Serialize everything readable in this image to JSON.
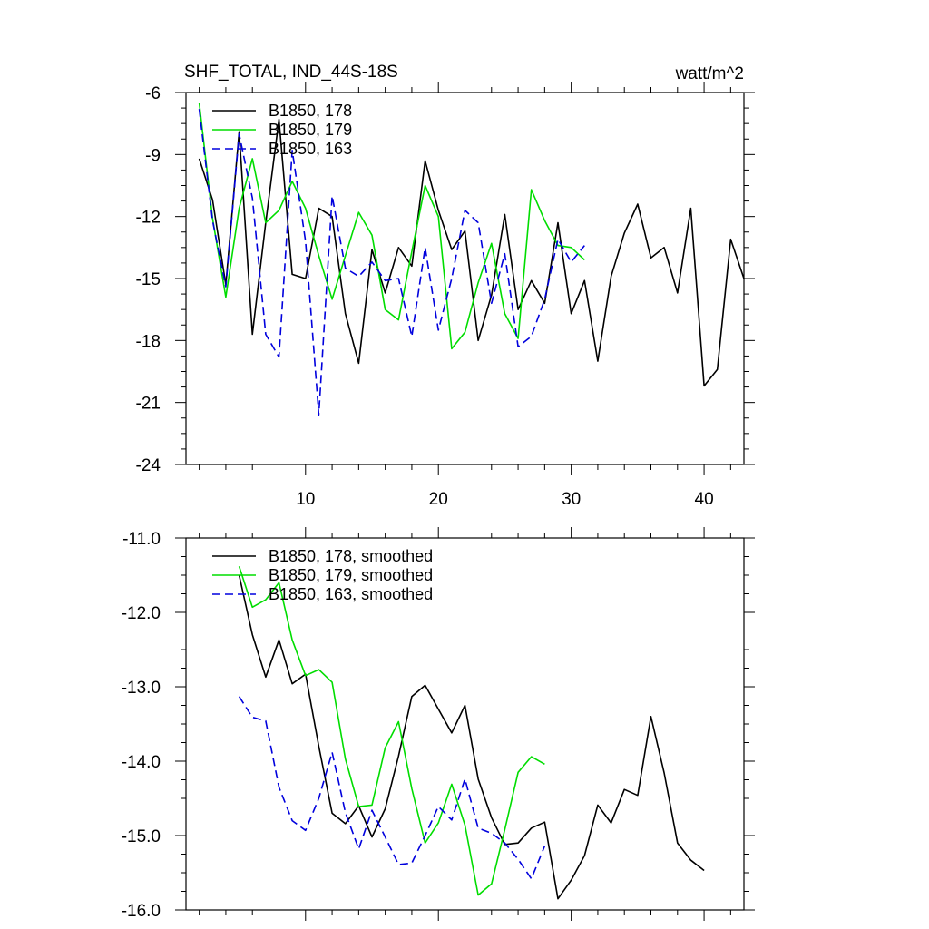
{
  "chart_data": [
    {
      "type": "line",
      "title_left": "SHF_TOTAL, IND_44S-18S",
      "title_right": "watt/m^2",
      "xlim": [
        1,
        43
      ],
      "ylim": [
        -24,
        -6
      ],
      "x_ticks": [
        10,
        20,
        30,
        40
      ],
      "y_ticks": [
        -6,
        -9,
        -12,
        -15,
        -18,
        -21,
        -24
      ],
      "y_tick_labels": [
        "-6",
        "-9",
        "-12",
        "-15",
        "-18",
        "-21",
        "-24"
      ],
      "series": [
        {
          "name": "B1850, 178",
          "color": "#000000",
          "dash": "solid",
          "x": [
            2,
            3,
            4,
            5,
            6,
            7,
            8,
            9,
            10,
            11,
            12,
            13,
            14,
            15,
            16,
            17,
            18,
            19,
            20,
            21,
            22,
            23,
            24,
            25,
            26,
            27,
            28,
            29,
            30,
            31,
            32,
            33,
            34,
            35,
            36,
            37,
            38,
            39,
            40,
            41,
            42,
            43
          ],
          "values": [
            -9.2,
            -11.2,
            -15.3,
            -7.9,
            -17.7,
            -12.3,
            -7.3,
            -14.8,
            -15.0,
            -11.6,
            -12.0,
            -16.7,
            -19.1,
            -13.6,
            -15.7,
            -13.5,
            -14.4,
            -9.3,
            -11.7,
            -13.6,
            -12.7,
            -18.0,
            -15.8,
            -11.9,
            -16.5,
            -15.1,
            -16.2,
            -12.3,
            -16.7,
            -15.1,
            -19.0,
            -14.9,
            -12.8,
            -11.4,
            -14.0,
            -13.5,
            -15.7,
            -11.6,
            -20.2,
            -19.4,
            -13.1,
            -15.0
          ]
        },
        {
          "name": "B1850, 179",
          "color": "#00dd00",
          "dash": "solid",
          "x": [
            2,
            3,
            4,
            5,
            6,
            7,
            8,
            9,
            10,
            11,
            12,
            13,
            14,
            15,
            16,
            17,
            18,
            19,
            20,
            21,
            22,
            23,
            24,
            25,
            26,
            27,
            28,
            29,
            30,
            31
          ],
          "values": [
            -6.5,
            -12.1,
            -15.9,
            -11.6,
            -9.2,
            -12.3,
            -11.7,
            -10.3,
            -11.6,
            -13.9,
            -16.0,
            -13.9,
            -11.8,
            -12.9,
            -16.5,
            -17.0,
            -13.7,
            -10.5,
            -12.0,
            -18.4,
            -17.6,
            -15.2,
            -13.3,
            -16.7,
            -17.9,
            -10.7,
            -12.2,
            -13.4,
            -13.5,
            -14.1
          ]
        },
        {
          "name": "B1850, 163",
          "color": "#0000dd",
          "dash": "dashed",
          "x": [
            2,
            3,
            4,
            5,
            6,
            7,
            8,
            9,
            10,
            11,
            12,
            13,
            14,
            15,
            16,
            17,
            18,
            19,
            20,
            21,
            22,
            23,
            24,
            25,
            26,
            27,
            28,
            29,
            30,
            31
          ],
          "values": [
            -6.8,
            -12.2,
            -15.4,
            -8.0,
            -11.1,
            -17.7,
            -18.8,
            -8.8,
            -13.2,
            -21.6,
            -11.0,
            -14.5,
            -14.9,
            -14.2,
            -15.1,
            -15.0,
            -17.8,
            -13.5,
            -17.5,
            -15.0,
            -11.7,
            -12.3,
            -16.2,
            -13.8,
            -18.3,
            -17.8,
            -16.0,
            -13.1,
            -14.2,
            -13.4
          ]
        }
      ]
    },
    {
      "type": "line",
      "xlim": [
        1,
        43
      ],
      "ylim": [
        -16.0,
        -11.0
      ],
      "x_ticks": [
        10,
        20,
        30,
        40
      ],
      "y_ticks": [
        -11.0,
        -12.0,
        -13.0,
        -14.0,
        -15.0,
        -16.0
      ],
      "y_tick_labels": [
        "-11.0",
        "-12.0",
        "-13.0",
        "-14.0",
        "-15.0",
        "-16.0"
      ],
      "series": [
        {
          "name": "B1850, 178, smoothed",
          "color": "#000000",
          "dash": "solid",
          "x": [
            5,
            6,
            7,
            8,
            9,
            10,
            11,
            12,
            13,
            14,
            15,
            16,
            17,
            18,
            19,
            20,
            21,
            22,
            23,
            24,
            25,
            26,
            27,
            28,
            29,
            30,
            31,
            32,
            33,
            34,
            35,
            36,
            37,
            38,
            39,
            40
          ],
          "values": [
            -11.5,
            -12.3,
            -12.87,
            -12.37,
            -12.96,
            -12.83,
            -13.8,
            -14.7,
            -14.84,
            -14.6,
            -15.02,
            -14.64,
            -13.93,
            -13.13,
            -12.98,
            -13.3,
            -13.62,
            -13.25,
            -14.24,
            -14.76,
            -15.12,
            -15.1,
            -14.9,
            -14.82,
            -15.85,
            -15.6,
            -15.27,
            -14.59,
            -14.83,
            -14.38,
            -14.46,
            -13.4,
            -14.16,
            -15.1,
            -15.33,
            -15.47
          ]
        },
        {
          "name": "B1850, 179, smoothed",
          "color": "#00dd00",
          "dash": "solid",
          "x": [
            5,
            6,
            7,
            8,
            9,
            10,
            11,
            12,
            13,
            14,
            15,
            16,
            17,
            18,
            19,
            20,
            21,
            22,
            23,
            24,
            25,
            26,
            27,
            28
          ],
          "values": [
            -11.38,
            -11.93,
            -11.83,
            -11.6,
            -12.37,
            -12.85,
            -12.77,
            -12.94,
            -13.97,
            -14.61,
            -14.59,
            -13.82,
            -13.47,
            -14.37,
            -15.1,
            -14.83,
            -14.31,
            -14.86,
            -15.8,
            -15.65,
            -14.92,
            -14.15,
            -13.94,
            -14.04
          ]
        },
        {
          "name": "B1850, 163, smoothed",
          "color": "#0000dd",
          "dash": "dashed",
          "x": [
            5,
            6,
            7,
            8,
            9,
            10,
            11,
            12,
            13,
            14,
            15,
            16,
            17,
            18,
            19,
            20,
            21,
            22,
            23,
            24,
            25,
            26,
            27,
            28
          ],
          "values": [
            -13.13,
            -13.41,
            -13.46,
            -14.35,
            -14.8,
            -14.93,
            -14.5,
            -13.88,
            -14.69,
            -15.18,
            -14.66,
            -15.02,
            -15.39,
            -15.37,
            -15.0,
            -14.61,
            -14.79,
            -14.24,
            -14.9,
            -14.97,
            -15.1,
            -15.32,
            -15.58,
            -15.14
          ]
        }
      ]
    }
  ]
}
